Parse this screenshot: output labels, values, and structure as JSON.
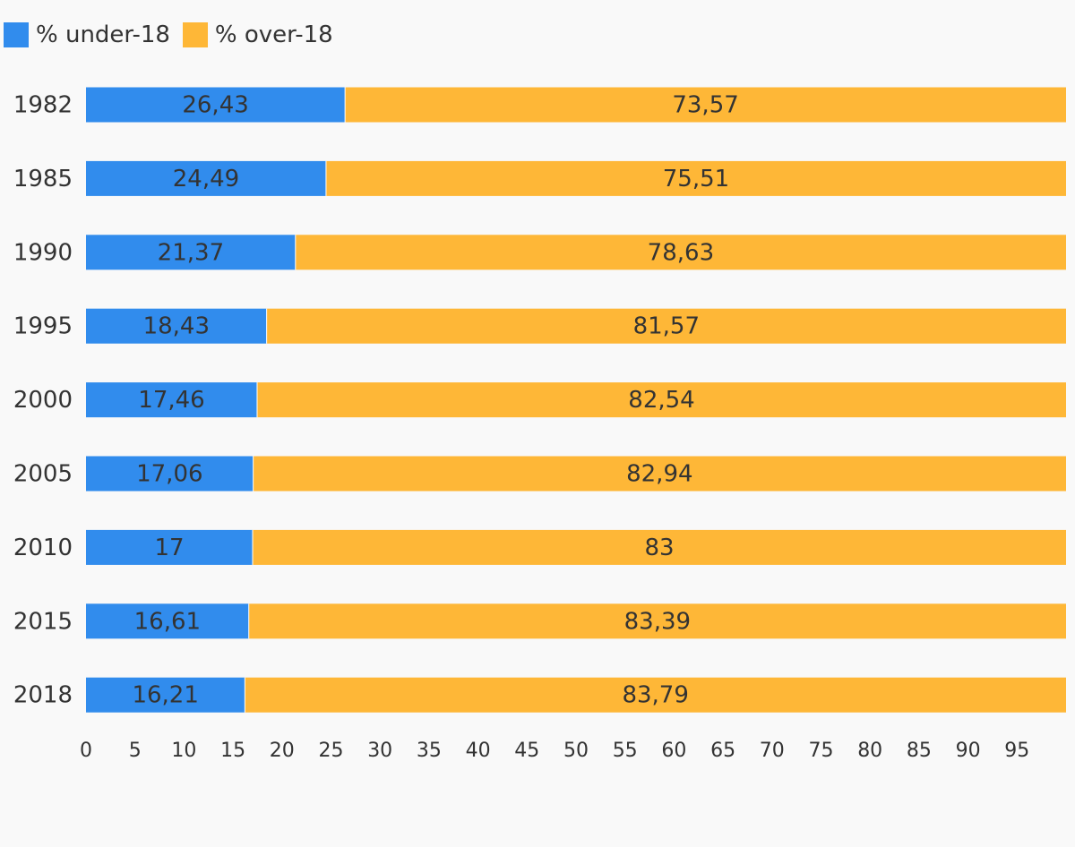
{
  "chart_data": {
    "type": "bar",
    "orientation": "horizontal",
    "stacked": true,
    "categories": [
      "1982",
      "1985",
      "1990",
      "1995",
      "2000",
      "2005",
      "2010",
      "2015",
      "2018"
    ],
    "series": [
      {
        "name": "% under-18",
        "color": "#318ced",
        "values": [
          26.43,
          24.49,
          21.37,
          18.43,
          17.46,
          17.06,
          17,
          16.61,
          16.21
        ],
        "labels": [
          "26,43",
          "24,49",
          "21,37",
          "18,43",
          "17,46",
          "17,06",
          "17",
          "16,61",
          "16,21"
        ]
      },
      {
        "name": "% over-18",
        "color": "#feb737",
        "values": [
          73.57,
          75.51,
          78.63,
          81.57,
          82.54,
          82.94,
          83,
          83.39,
          83.79
        ],
        "labels": [
          "73,57",
          "75,51",
          "78,63",
          "81,57",
          "82,54",
          "82,94",
          "83",
          "83,39",
          "83,79"
        ]
      }
    ],
    "xlim": [
      0,
      100
    ],
    "xticks": [
      "0",
      "5",
      "10",
      "15",
      "20",
      "25",
      "30",
      "35",
      "40",
      "45",
      "50",
      "55",
      "60",
      "65",
      "70",
      "75",
      "80",
      "85",
      "90",
      "95"
    ],
    "grid": false,
    "legend": "top-left",
    "title": "",
    "xlabel": "",
    "ylabel": ""
  }
}
